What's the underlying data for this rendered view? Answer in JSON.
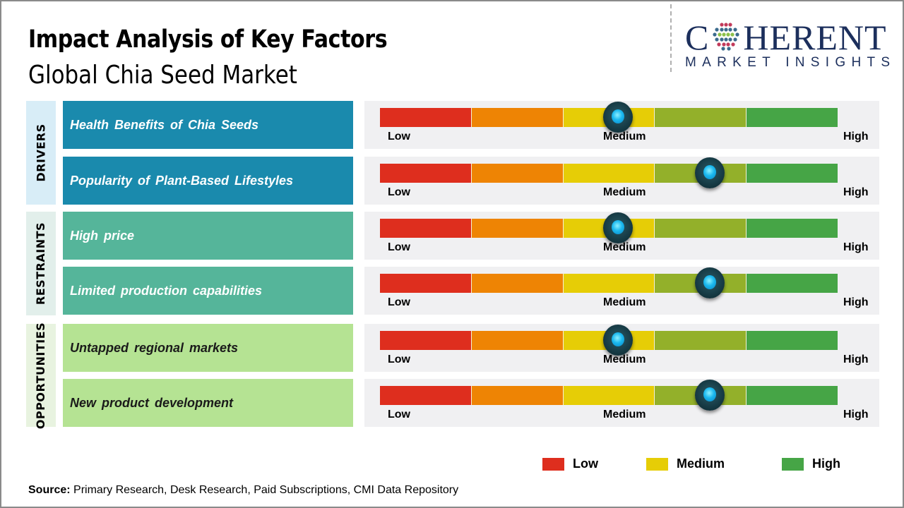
{
  "header": {
    "title": "Impact Analysis of Key Factors",
    "subtitle": "Global Chia Seed Market"
  },
  "logo": {
    "word_prefix": "C",
    "word_suffix": "HERENT",
    "tagline": "MARKET INSIGHTS",
    "colors": {
      "text": "#1c2f5c",
      "dots_outer": "#3a6a8c",
      "dots_inner": "#8cc04a",
      "dots_accent": "#c23a5a"
    }
  },
  "colors": {
    "scale": [
      "#de2e1e",
      "#ee8404",
      "#e6cd06",
      "#93b02a",
      "#46a546"
    ],
    "drivers_bg": "#1a8aad",
    "restraints_bg": "#55b59a",
    "opportunities_bg": "#b5e393"
  },
  "scale_labels": {
    "low": "Low",
    "medium": "Medium",
    "high": "High"
  },
  "chart_data": {
    "type": "table",
    "title": "Impact Analysis of Key Factors",
    "subtitle": "Global Chia Seed Market",
    "scale": {
      "min_label": "Low",
      "mid_label": "Medium",
      "max_label": "High",
      "range": [
        0,
        1
      ],
      "segments": 5
    },
    "categories": [
      {
        "name": "DRIVERS",
        "factors": [
          {
            "label": "Health Benefits of Chia Seeds",
            "impact": 0.52,
            "impact_level": "Medium"
          },
          {
            "label": "Popularity of Plant-Based Lifestyles",
            "impact": 0.72,
            "impact_level": "Medium-High"
          }
        ]
      },
      {
        "name": "RESTRAINTS",
        "factors": [
          {
            "label": "High price",
            "impact": 0.52,
            "impact_level": "Medium"
          },
          {
            "label": "Limited production capabilities",
            "impact": 0.72,
            "impact_level": "Medium-High"
          }
        ]
      },
      {
        "name": "OPPORTUNITIES",
        "factors": [
          {
            "label": "Untapped regional markets",
            "impact": 0.52,
            "impact_level": "Medium"
          },
          {
            "label": "New product development",
            "impact": 0.72,
            "impact_level": "Medium-High"
          }
        ]
      }
    ],
    "legend": [
      {
        "label": "Low",
        "color": "#de2e1e"
      },
      {
        "label": "Medium",
        "color": "#e6cd06"
      },
      {
        "label": "High",
        "color": "#46a546"
      }
    ],
    "legend_position": "bottom-right"
  },
  "source": {
    "label": "Source:",
    "text": " Primary Research, Desk Research, Paid Subscriptions, CMI Data Repository"
  }
}
